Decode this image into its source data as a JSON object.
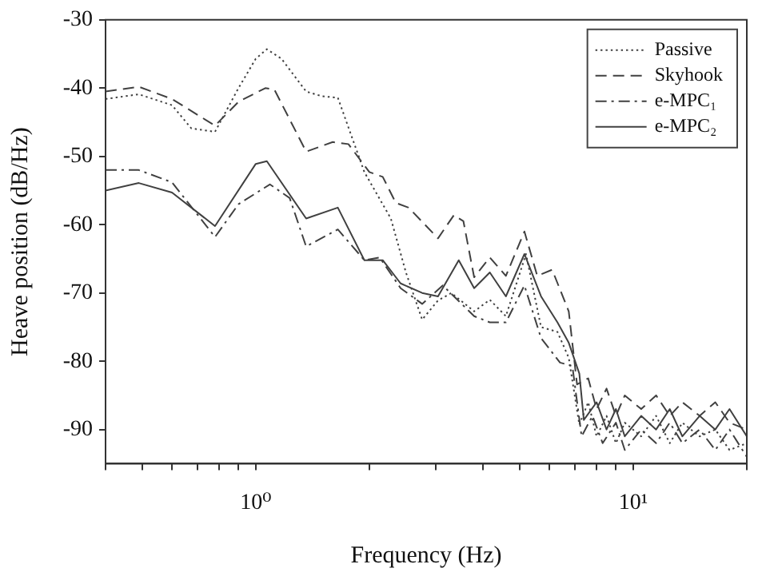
{
  "chart_data": {
    "type": "line",
    "xlabel": "Frequency (Hz)",
    "ylabel": "Heave position (dB/Hz)",
    "log": "x",
    "xlim": [
      0.4,
      20
    ],
    "ylim": [
      -95,
      -30
    ],
    "xticks": [
      {
        "value": 0.4,
        "label": null
      },
      {
        "value": 0.5,
        "label": null
      },
      {
        "value": 0.6,
        "label": null
      },
      {
        "value": 0.7,
        "label": null
      },
      {
        "value": 0.8,
        "label": null
      },
      {
        "value": 0.9,
        "label": null
      },
      {
        "value": 1,
        "label": "10⁰"
      },
      {
        "value": 2,
        "label": null
      },
      {
        "value": 3,
        "label": null
      },
      {
        "value": 4,
        "label": null
      },
      {
        "value": 5,
        "label": null
      },
      {
        "value": 6,
        "label": null
      },
      {
        "value": 7,
        "label": null
      },
      {
        "value": 8,
        "label": null
      },
      {
        "value": 9,
        "label": null
      },
      {
        "value": 10,
        "label": "10¹"
      },
      {
        "value": 20,
        "label": null
      }
    ],
    "yticks": [
      -90,
      -80,
      -70,
      -60,
      -50,
      -40,
      -30
    ],
    "grid": false,
    "legend": "top right",
    "marker": "none",
    "series": [
      {
        "name": "Passive",
        "color": "#404040",
        "line_style": "dotted",
        "x": [
          0.4,
          0.49,
          0.6,
          0.675,
          0.78,
          0.9,
          1.0,
          1.07,
          1.17,
          1.36,
          1.5,
          1.65,
          1.94,
          2.28,
          2.5,
          2.76,
          3.04,
          3.3,
          3.79,
          4.17,
          4.6,
          5.2,
          5.7,
          6.3,
          6.75,
          7.2,
          7.6,
          8,
          8.5,
          9,
          9.5,
          10.5,
          11.5,
          12.5,
          13.5,
          15,
          16.5,
          18,
          20
        ],
        "values": [
          -41.6,
          -40.9,
          -42.5,
          -45.9,
          -46.4,
          -40,
          -35.7,
          -34.3,
          -35.7,
          -40.5,
          -41.2,
          -41.4,
          -52.3,
          -59.1,
          -67,
          -73.9,
          -71.1,
          -70,
          -72.7,
          -71,
          -73.4,
          -64.3,
          -75,
          -75.7,
          -79.5,
          -89.3,
          -86,
          -91,
          -88,
          -92,
          -89,
          -91,
          -88,
          -92,
          -89,
          -91,
          -90,
          -93,
          -92
        ]
      },
      {
        "name": "Skyhook",
        "color": "#404040",
        "line_style": "dashed",
        "x": [
          0.4,
          0.49,
          0.6,
          0.78,
          0.9,
          1.06,
          1.12,
          1.36,
          1.6,
          1.76,
          2.0,
          2.17,
          2.35,
          2.54,
          3.04,
          3.35,
          3.55,
          3.79,
          4.17,
          4.6,
          5.15,
          5.57,
          6.1,
          6.75,
          7.1,
          7.6,
          8,
          8.5,
          9,
          9.5,
          10.5,
          11.5,
          12.5,
          13.5,
          15,
          16.5,
          18,
          20
        ],
        "values": [
          -40.5,
          -39.8,
          -41.6,
          -45.5,
          -42,
          -40,
          -40.2,
          -49.3,
          -47.9,
          -48.2,
          -52.3,
          -53,
          -56.8,
          -57.5,
          -62,
          -58.6,
          -59.5,
          -67.7,
          -64.8,
          -67.5,
          -61,
          -67.5,
          -66.6,
          -72.7,
          -83.4,
          -82.5,
          -87,
          -84,
          -88,
          -85,
          -87,
          -85,
          -88,
          -86,
          -88,
          -86,
          -89,
          -90
        ]
      },
      {
        "name": "e-MPC₁",
        "color": "#404040",
        "line_style": "dashdot",
        "x": [
          0.4,
          0.49,
          0.6,
          0.78,
          0.9,
          1.09,
          1.23,
          1.36,
          1.65,
          1.94,
          2.13,
          2.42,
          2.76,
          3.13,
          3.79,
          4.17,
          4.6,
          5.15,
          5.7,
          6.4,
          6.9,
          7.3,
          7.8,
          8.3,
          9,
          9.5,
          10.5,
          11.5,
          12.5,
          13.5,
          15,
          16.5,
          18,
          20
        ],
        "values": [
          -52,
          -52,
          -53.8,
          -61.8,
          -57,
          -54.1,
          -56.1,
          -63.2,
          -60.7,
          -65.2,
          -64.8,
          -69.3,
          -71.6,
          -68.9,
          -73.4,
          -74.3,
          -74.3,
          -68.9,
          -76.6,
          -80.2,
          -80.7,
          -91,
          -88,
          -92,
          -89,
          -93,
          -90,
          -92,
          -89,
          -92,
          -90,
          -93,
          -90,
          -94
        ]
      },
      {
        "name": "e-MPC₂",
        "color": "#404040",
        "line_style": "solid",
        "x": [
          0.4,
          0.49,
          0.6,
          0.78,
          1.0,
          1.07,
          1.36,
          1.65,
          1.94,
          2.17,
          2.42,
          2.76,
          3.04,
          3.45,
          3.79,
          4.17,
          4.6,
          5.15,
          5.7,
          6.3,
          6.75,
          7.2,
          7.4,
          8,
          8.5,
          9,
          9.5,
          10.5,
          11.5,
          12.5,
          13.5,
          15,
          16.5,
          18,
          20
        ],
        "values": [
          -55,
          -53.9,
          -55.3,
          -60.2,
          -51.1,
          -50.7,
          -59.1,
          -57.5,
          -65.2,
          -65.2,
          -68.6,
          -70,
          -70.5,
          -65.2,
          -69.3,
          -67,
          -70.5,
          -64.3,
          -70.5,
          -74.3,
          -77.3,
          -81.8,
          -88.6,
          -86,
          -90,
          -87,
          -91,
          -88,
          -90,
          -87,
          -91,
          -88,
          -90,
          -87,
          -91
        ]
      }
    ]
  }
}
